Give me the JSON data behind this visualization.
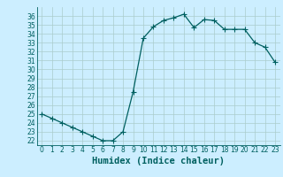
{
  "xlabel": "Humidex (Indice chaleur)",
  "x": [
    0,
    1,
    2,
    3,
    4,
    5,
    6,
    7,
    8,
    9,
    10,
    11,
    12,
    13,
    14,
    15,
    16,
    17,
    18,
    19,
    20,
    21,
    22,
    23
  ],
  "y": [
    25.0,
    24.5,
    24.0,
    23.5,
    23.0,
    22.5,
    22.0,
    22.0,
    23.0,
    27.5,
    33.5,
    34.8,
    35.5,
    35.8,
    36.2,
    34.7,
    35.6,
    35.5,
    34.5,
    34.5,
    34.5,
    33.0,
    32.5,
    30.8
  ],
  "ylim": [
    21.5,
    37.0
  ],
  "xlim": [
    -0.5,
    23.5
  ],
  "yticks": [
    22,
    23,
    24,
    25,
    26,
    27,
    28,
    29,
    30,
    31,
    32,
    33,
    34,
    35,
    36
  ],
  "xticks": [
    0,
    1,
    2,
    3,
    4,
    5,
    6,
    7,
    8,
    9,
    10,
    11,
    12,
    13,
    14,
    15,
    16,
    17,
    18,
    19,
    20,
    21,
    22,
    23
  ],
  "line_color": "#006060",
  "marker": "+",
  "marker_size": 4,
  "marker_linewidth": 0.8,
  "bg_color": "#cceeff",
  "grid_color": "#aacccc",
  "axis_color": "#006060",
  "tick_label_fontsize": 5.5,
  "xlabel_fontsize": 7.5,
  "line_width": 0.9
}
